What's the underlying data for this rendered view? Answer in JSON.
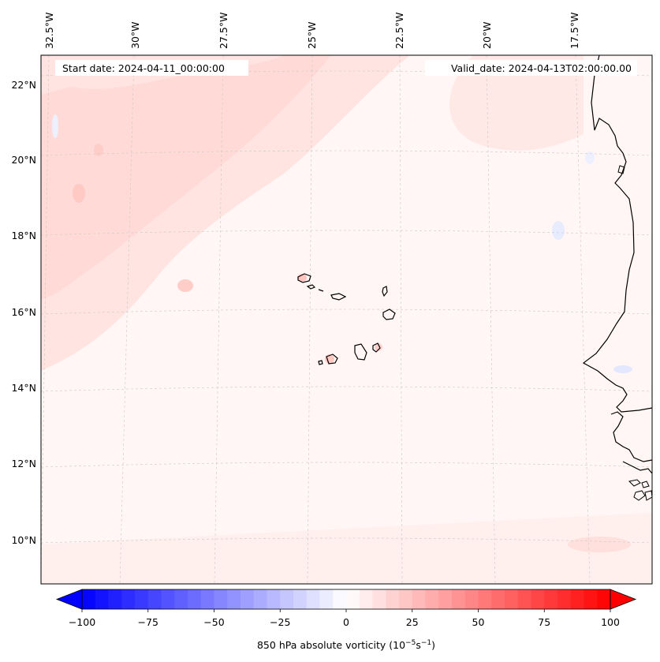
{
  "header": {
    "start_date": "Start date: 2024-04-11_00:00:00",
    "valid_date": "Valid_date: 2024-04-13T02:00:00.00"
  },
  "map": {
    "lon_labels": [
      "32.5°W",
      "30°W",
      "27.5°W",
      "25°W",
      "22.5°W",
      "20°W",
      "17.5°W"
    ],
    "lat_labels": [
      "22°N",
      "20°N",
      "18°N",
      "16°N",
      "14°N",
      "12°N",
      "10°N"
    ],
    "gridlines": "dashed",
    "field": "850 hPa absolute vorticity (mostly weak positive values, light pink shading)"
  },
  "colorbar": {
    "ticks": [
      "−100",
      "−75",
      "−50",
      "−25",
      "0",
      "25",
      "50",
      "75",
      "100"
    ],
    "min": -100,
    "max": 100,
    "label": "850 hPa absolute vorticity (10",
    "label_sup1": "−5",
    "label_mid": "s",
    "label_sup2": "−1",
    "label_end": ")",
    "colors": {
      "low": "#0000ff",
      "mid": "#ffffff",
      "high": "#ff0000"
    },
    "extend": "both"
  }
}
